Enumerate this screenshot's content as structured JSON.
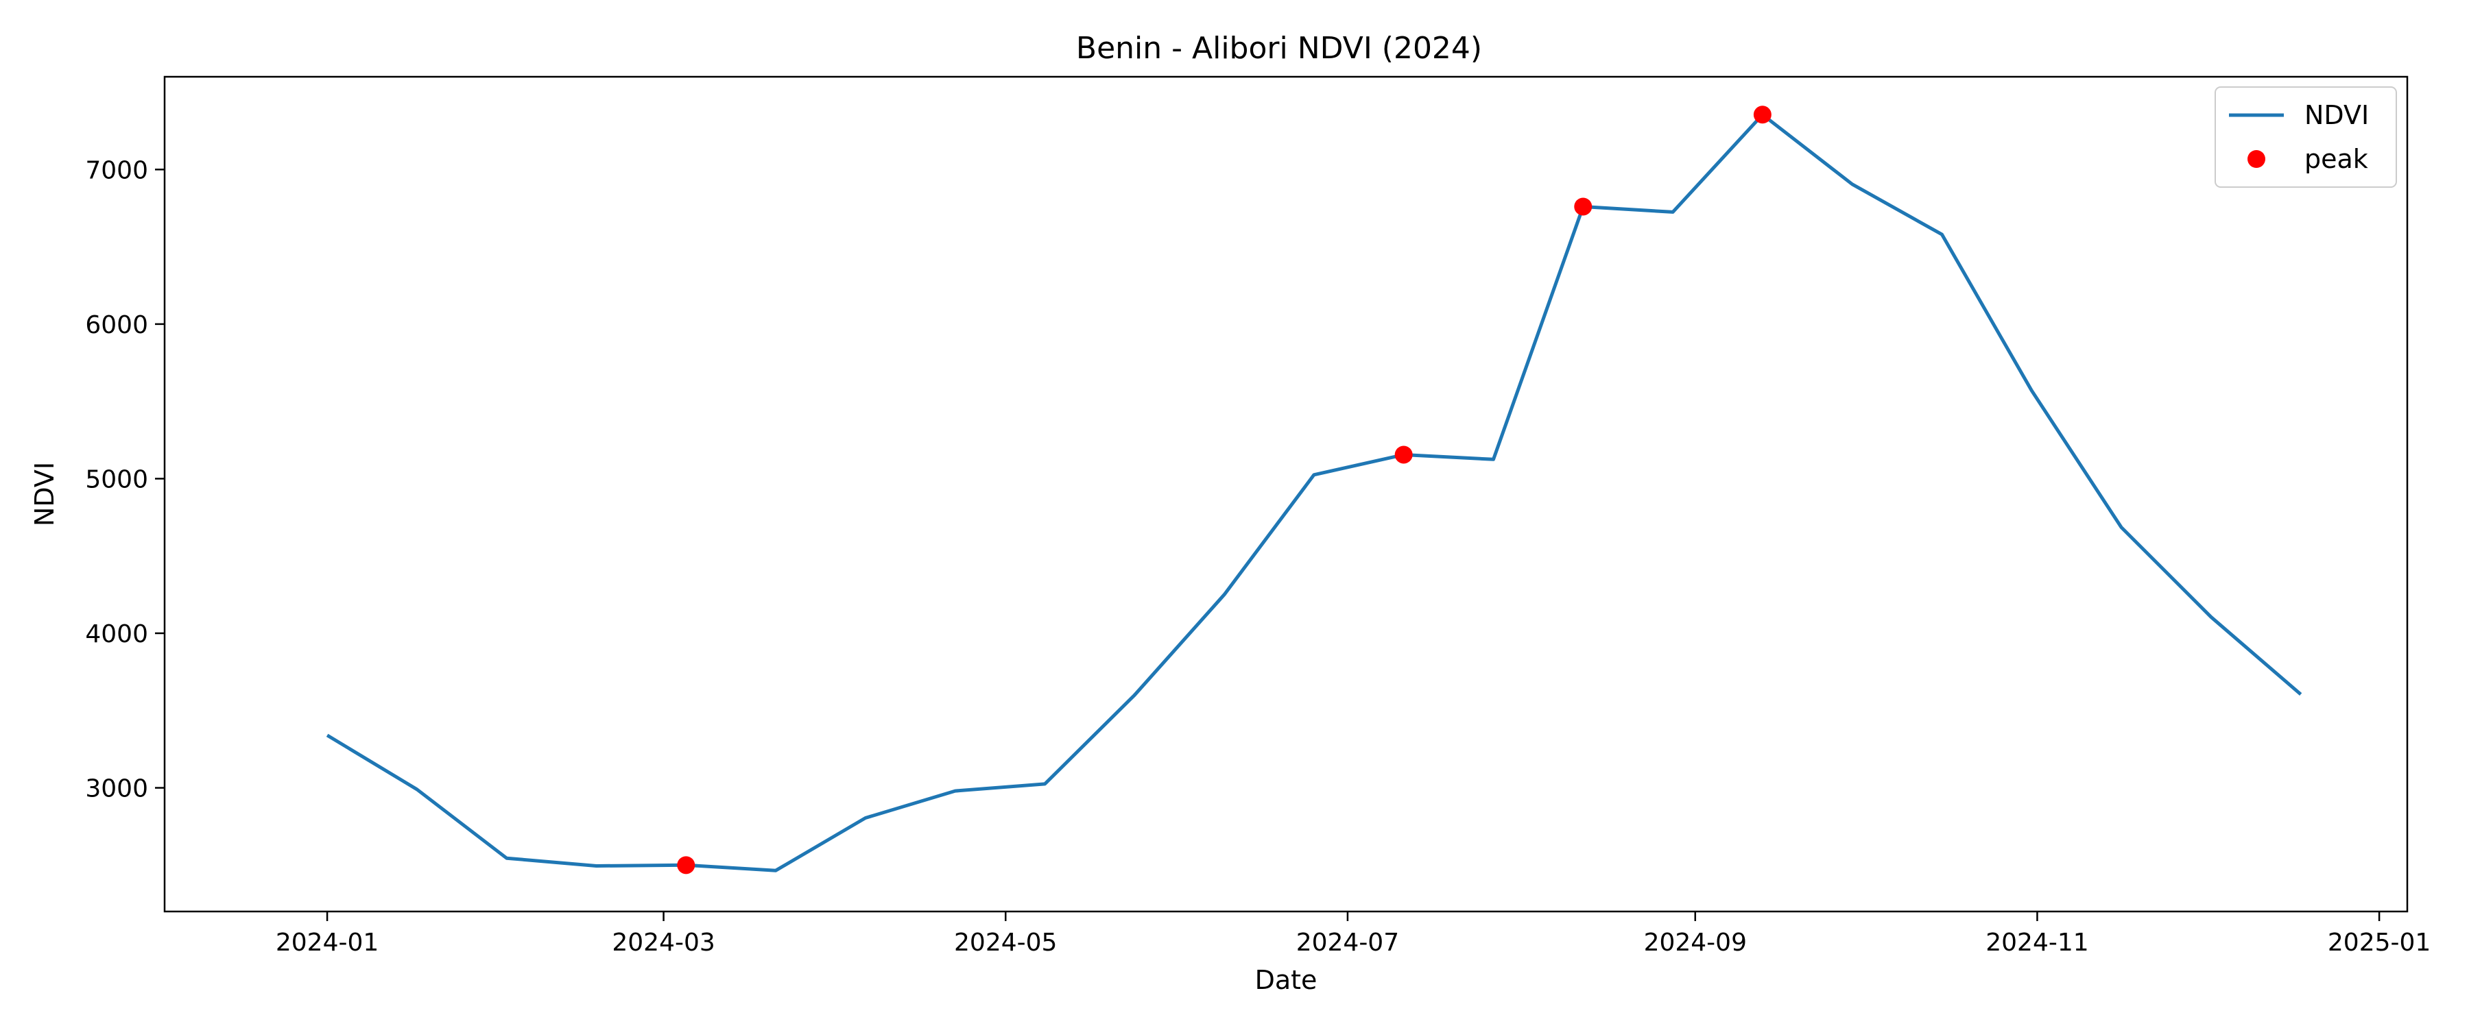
{
  "chart_data": {
    "type": "line",
    "title": "Benin - Alibori NDVI (2024)",
    "xlabel": "Date",
    "ylabel": "NDVI",
    "xlim": [
      "2023-12-03",
      "2025-01-06"
    ],
    "ylim": [
      2200,
      7600
    ],
    "xticks": [
      {
        "date": "2024-01-01",
        "label": "2024-01"
      },
      {
        "date": "2024-03-01",
        "label": "2024-03"
      },
      {
        "date": "2024-05-01",
        "label": "2024-05"
      },
      {
        "date": "2024-07-01",
        "label": "2024-07"
      },
      {
        "date": "2024-09-01",
        "label": "2024-09"
      },
      {
        "date": "2024-11-01",
        "label": "2024-11"
      },
      {
        "date": "2025-01-01",
        "label": "2025-01"
      }
    ],
    "yticks": [
      3000,
      4000,
      5000,
      6000,
      7000
    ],
    "grid": false,
    "legend_position": "top-right",
    "series": [
      {
        "name": "NDVI",
        "color": "#1f77b4",
        "points": [
          {
            "x": "2024-01-01",
            "y": 3340
          },
          {
            "x": "2024-01-17",
            "y": 2990
          },
          {
            "x": "2024-02-02",
            "y": 2545
          },
          {
            "x": "2024-02-18",
            "y": 2495
          },
          {
            "x": "2024-03-05",
            "y": 2500
          },
          {
            "x": "2024-03-21",
            "y": 2465
          },
          {
            "x": "2024-04-06",
            "y": 2805
          },
          {
            "x": "2024-04-22",
            "y": 2980
          },
          {
            "x": "2024-05-08",
            "y": 3025
          },
          {
            "x": "2024-05-24",
            "y": 3600
          },
          {
            "x": "2024-06-09",
            "y": 4250
          },
          {
            "x": "2024-06-25",
            "y": 5025
          },
          {
            "x": "2024-07-11",
            "y": 5155
          },
          {
            "x": "2024-07-27",
            "y": 5125
          },
          {
            "x": "2024-08-12",
            "y": 6760
          },
          {
            "x": "2024-08-28",
            "y": 6725
          },
          {
            "x": "2024-09-13",
            "y": 7355
          },
          {
            "x": "2024-09-29",
            "y": 6905
          },
          {
            "x": "2024-10-15",
            "y": 6580
          },
          {
            "x": "2024-10-31",
            "y": 5570
          },
          {
            "x": "2024-11-16",
            "y": 4685
          },
          {
            "x": "2024-12-02",
            "y": 4105
          },
          {
            "x": "2024-12-18",
            "y": 3605
          }
        ]
      },
      {
        "name": "peak",
        "color": "#ff0000",
        "points": [
          {
            "x": "2024-03-05",
            "y": 2500
          },
          {
            "x": "2024-07-11",
            "y": 5155
          },
          {
            "x": "2024-08-12",
            "y": 6760
          },
          {
            "x": "2024-09-13",
            "y": 7355
          }
        ]
      }
    ]
  }
}
